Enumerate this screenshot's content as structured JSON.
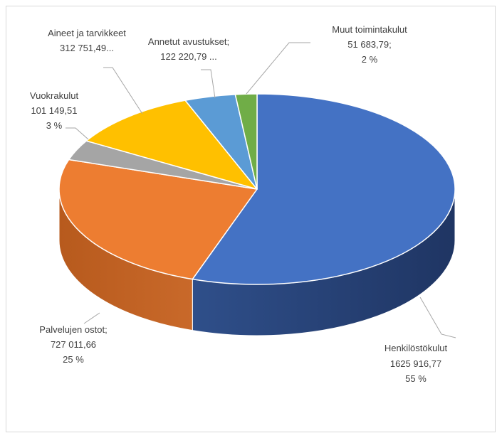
{
  "chart_data": {
    "type": "pie",
    "style": "3d",
    "title": "",
    "colors": {
      "Henkilöstökulut": "#4472c4",
      "Palvelujen ostot": "#ed7d31",
      "Vuokrakulut": "#a5a5a5",
      "Aineet ja tarvikkeet": "#ffc000",
      "Annetut avustukset": "#5b9bd5",
      "Muut toimintakulut": "#70ad47"
    },
    "slices": [
      {
        "name": "Henkilöstökulut",
        "value": 1625916.77,
        "percent": 55,
        "value_label": "1625 916,77",
        "percent_label": "55 %"
      },
      {
        "name": "Palvelujen ostot",
        "value": 727011.66,
        "percent": 25,
        "value_label": "727 011,66",
        "percent_label": "25 %"
      },
      {
        "name": "Vuokrakulut",
        "value": 101149.51,
        "percent": 3,
        "value_label": "101 149,51",
        "percent_label": "3 %"
      },
      {
        "name": "Aineet ja tarvikkeet",
        "value": 312751.49,
        "percent": 11,
        "value_label": "312 751,49..."
      },
      {
        "name": "Annetut avustukset",
        "value": 122220.79,
        "percent": 4,
        "value_label": "122 220,79 ..."
      },
      {
        "name": "Muut toimintakulut",
        "value": 51683.79,
        "percent": 2,
        "value_label": "51 683,79;",
        "percent_label": "2 %"
      }
    ],
    "labels": {
      "henk_name": "Henkilöstökulut",
      "henk_value": "1625 916,77",
      "henk_pct": "55 %",
      "palv_name": "Palvelujen ostot;",
      "palv_value": "727 011,66",
      "palv_pct": "25 %",
      "vuok_name": "Vuokrakulut",
      "vuok_value": "101 149,51",
      "vuok_pct": "3 %",
      "aine_name": "Aineet ja tarvikkeet",
      "aine_value": "312 751,49...",
      "anne_name": "Annetut avustukset;",
      "anne_value": "122 220,79 ...",
      "muut_name": "Muut toimintakulut",
      "muut_value": "51 683,79;",
      "muut_pct": "2 %"
    }
  }
}
